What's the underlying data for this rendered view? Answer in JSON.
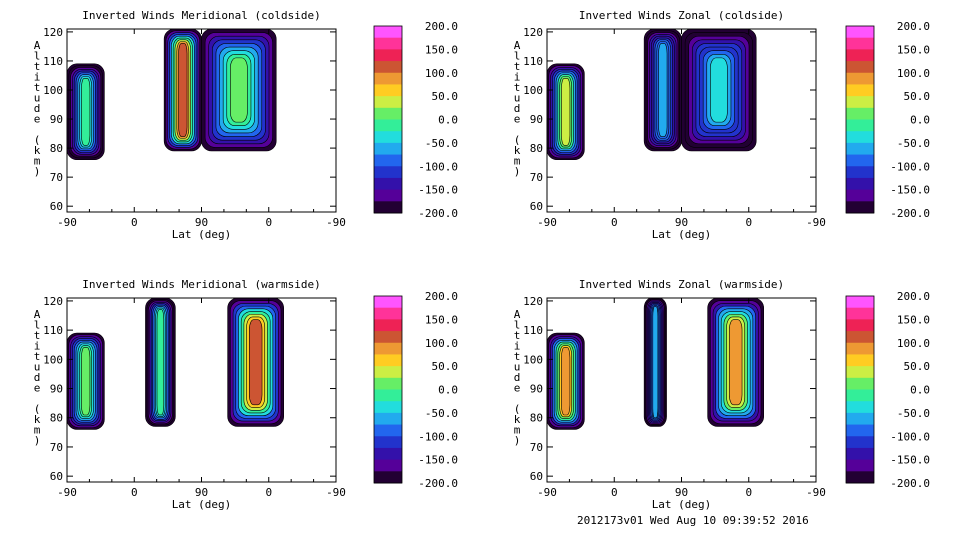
{
  "footer": "2012173v01 Wed Aug 10 09:39:52 2016",
  "colorbar": {
    "tick_labels": [
      "200.0",
      "150.0",
      "100.0",
      "50.0",
      "0.0",
      "-50.0",
      "-100.0",
      "-150.0",
      "-200.0"
    ],
    "colors_top_to_bottom": [
      "#ff55ff",
      "#ff3399",
      "#ee2255",
      "#cc5533",
      "#ee9933",
      "#ffcc22",
      "#ccee44",
      "#66ee66",
      "#33ee99",
      "#22dddd",
      "#22aaee",
      "#2266ee",
      "#2233cc",
      "#3311aa",
      "#550099",
      "#220033"
    ]
  },
  "chart_data": [
    {
      "type": "heatmap",
      "title": "Inverted Winds Meridional (coldside)",
      "xlabel": "Lat (deg)",
      "ylabel": "Altitude (km)",
      "xticks": [
        "-90",
        "0",
        "90",
        "0",
        "-90"
      ],
      "yticks": [
        "60",
        "70",
        "80",
        "90",
        "100",
        "110",
        "120"
      ],
      "ylim": [
        58,
        121
      ],
      "zlim": [
        -200,
        200
      ],
      "blobs": [
        {
          "x": [
            -90,
            -40
          ],
          "y": [
            76,
            109
          ],
          "core": -20
        },
        {
          "x": [
            40,
            90
          ],
          "y": [
            79,
            121
          ],
          "core": 120
        },
        {
          "x": [
            90,
            190
          ],
          "y": [
            79,
            121
          ],
          "core": 10
        }
      ]
    },
    {
      "type": "heatmap",
      "title": "Inverted Winds Zonal (coldside)",
      "xlabel": "Lat (deg)",
      "ylabel": "Altitude (km)",
      "xticks": [
        "-90",
        "0",
        "90",
        "0",
        "-90"
      ],
      "yticks": [
        "60",
        "70",
        "80",
        "90",
        "100",
        "110",
        "120"
      ],
      "ylim": [
        58,
        121
      ],
      "zlim": [
        -200,
        200
      ],
      "blobs": [
        {
          "x": [
            -90,
            -40
          ],
          "y": [
            76,
            109
          ],
          "core": 40
        },
        {
          "x": [
            40,
            90
          ],
          "y": [
            79,
            121
          ],
          "core": -60
        },
        {
          "x": [
            90,
            190
          ],
          "y": [
            79,
            121
          ],
          "core": -40
        }
      ]
    },
    {
      "type": "heatmap",
      "title": "Inverted Winds Meridional (warmside)",
      "xlabel": "Lat (deg)",
      "ylabel": "Altitude (km)",
      "xticks": [
        "-90",
        "0",
        "90",
        "0",
        "-90"
      ],
      "yticks": [
        "60",
        "70",
        "80",
        "90",
        "100",
        "110",
        "120"
      ],
      "ylim": [
        58,
        121
      ],
      "zlim": [
        -200,
        200
      ],
      "blobs": [
        {
          "x": [
            -90,
            -40
          ],
          "y": [
            76,
            109
          ],
          "core": 20
        },
        {
          "x": [
            15,
            55
          ],
          "y": [
            77,
            121
          ],
          "core": 0
        },
        {
          "x": [
            125,
            200
          ],
          "y": [
            77,
            121
          ],
          "core": 110
        }
      ]
    },
    {
      "type": "heatmap",
      "title": "Inverted Winds Zonal (warmside)",
      "xlabel": "Lat (deg)",
      "ylabel": "Altitude (km)",
      "xticks": [
        "-90",
        "0",
        "90",
        "0",
        "-90"
      ],
      "yticks": [
        "60",
        "70",
        "80",
        "90",
        "100",
        "110",
        "120"
      ],
      "ylim": [
        58,
        121
      ],
      "zlim": [
        -200,
        200
      ],
      "blobs": [
        {
          "x": [
            -90,
            -40
          ],
          "y": [
            76,
            109
          ],
          "core": 90
        },
        {
          "x": [
            40,
            70
          ],
          "y": [
            77,
            121
          ],
          "core": -60
        },
        {
          "x": [
            125,
            200
          ],
          "y": [
            77,
            121
          ],
          "core": 80
        }
      ]
    }
  ]
}
